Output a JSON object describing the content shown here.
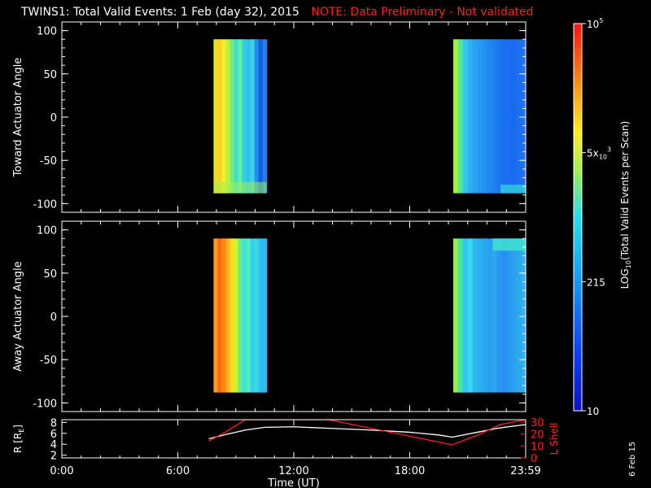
{
  "title": {
    "main": "TWINS1: Total Valid Events:  1 Feb (day  32), 2015",
    "note": "NOTE: Data Preliminary - Not validated",
    "note_color": "#ff2020"
  },
  "side_date": "6 Feb 15",
  "chart_data": [
    {
      "type": "heatmap",
      "ylabel": "Toward Actuator Angle",
      "ylim": [
        -110,
        110
      ],
      "yticks": [
        "100",
        "50",
        "0",
        "-50",
        "-100"
      ],
      "xlim": [
        0,
        24
      ],
      "data_blocks_hours": [
        [
          7.85,
          10.6
        ],
        [
          20.25,
          24.0
        ]
      ],
      "angle_range": [
        -88,
        90
      ],
      "colormap": "rainbow (blue = low, red = high)"
    },
    {
      "type": "heatmap",
      "ylabel": "Away Actuator Angle",
      "ylim": [
        -110,
        110
      ],
      "yticks": [
        "100",
        "50",
        "0",
        "-50",
        "-100"
      ],
      "xlim": [
        0,
        24
      ],
      "data_blocks_hours": [
        [
          7.85,
          10.6
        ],
        [
          20.25,
          24.0
        ]
      ],
      "angle_range": [
        -88,
        90
      ],
      "colormap": "rainbow (blue = low, red = high)"
    },
    {
      "type": "line",
      "ylabel_left": "R [R",
      "ylabel_left_sub": "E",
      "ylabel_left_close": "]",
      "ylabel_right": "L Shell",
      "yticks_left": [
        "8",
        "6",
        "4",
        "2"
      ],
      "yticks_right": [
        "30",
        "20",
        "10",
        "0"
      ],
      "ylim_left": [
        1.5,
        8.5
      ],
      "ylim_right": [
        0,
        32
      ],
      "series": [
        {
          "axis": "left",
          "color": "#ffffff",
          "x": [
            7.6,
            8.5,
            9.5,
            10.5,
            12.0,
            14.0,
            16.0,
            18.0,
            19.5,
            20.2,
            21.5,
            22.5,
            23.3,
            24.0
          ],
          "y": [
            5.0,
            5.8,
            6.6,
            7.1,
            7.2,
            6.9,
            6.6,
            6.2,
            5.7,
            5.3,
            6.2,
            6.9,
            7.3,
            7.6
          ]
        },
        {
          "axis": "right",
          "color": "#ff2020",
          "x": [
            7.6,
            8.5,
            9.5,
            13.8,
            20.2,
            21.5,
            22.7,
            24.0
          ],
          "y": [
            14,
            22,
            32,
            32,
            11,
            19,
            28,
            32
          ]
        }
      ],
      "xlabel": "Time (UT)",
      "xticks": [
        "0:00",
        "6:00",
        "12:00",
        "18:00",
        "23:59"
      ],
      "xtick_hours": [
        0,
        6,
        12,
        18,
        24
      ]
    }
  ],
  "colorbar": {
    "label": "LOG",
    "label_sub": "10",
    "label_rest": "(Total Valid Events per Scan)",
    "ticks": [
      {
        "text": "10",
        "frac": 0.0
      },
      {
        "text": "215",
        "frac": 0.3333
      },
      {
        "text": "5x",
        "sub": "10",
        "sup": "3",
        "frac": 0.6667
      },
      {
        "text": "10",
        "sup": "5",
        "frac": 1.0
      }
    ]
  }
}
